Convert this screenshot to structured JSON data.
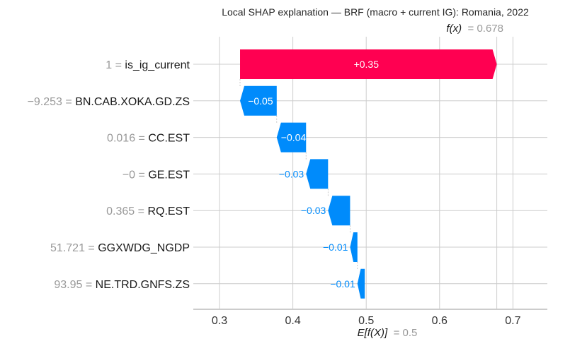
{
  "chart_data": {
    "type": "bar",
    "subtype": "waterfall",
    "title": "Local SHAP explanation — BRF (macro + current IG): Romania, 2022",
    "fx_label": "f(x)",
    "fx_value_text": "= 0.678",
    "fx_value": 0.678,
    "base_label": "E[f(X)]",
    "base_value_text": "= 0.5",
    "base_value": 0.5,
    "xlim": [
      0.265,
      0.74
    ],
    "xticks": [
      0.3,
      0.4,
      0.5,
      0.6,
      0.7
    ],
    "xtick_labels": [
      "0.3",
      "0.4",
      "0.5",
      "0.6",
      "0.7"
    ],
    "grid": true,
    "positive_color": "#ff0051",
    "negative_color": "#008bfb",
    "features": [
      {
        "value_text": "1 =",
        "name": "is_ig_current",
        "shap": 0.35,
        "label": "+0.35"
      },
      {
        "value_text": "−9.253 =",
        "name": "BN.CAB.XOKA.GD.ZS",
        "shap": -0.05,
        "label": "−0.05"
      },
      {
        "value_text": "0.016 =",
        "name": "CC.EST",
        "shap": -0.04,
        "label": "−0.04"
      },
      {
        "value_text": "−0 =",
        "name": "GE.EST",
        "shap": -0.03,
        "label": "−0.03"
      },
      {
        "value_text": "0.365 =",
        "name": "RQ.EST",
        "shap": -0.03,
        "label": "−0.03"
      },
      {
        "value_text": "51.721 =",
        "name": "GGXWDG_NGDP",
        "shap": -0.01,
        "label": "−0.01"
      },
      {
        "value_text": "93.95 =",
        "name": "NE.TRD.GNFS.ZS",
        "shap": -0.01,
        "label": "−0.01"
      }
    ]
  }
}
